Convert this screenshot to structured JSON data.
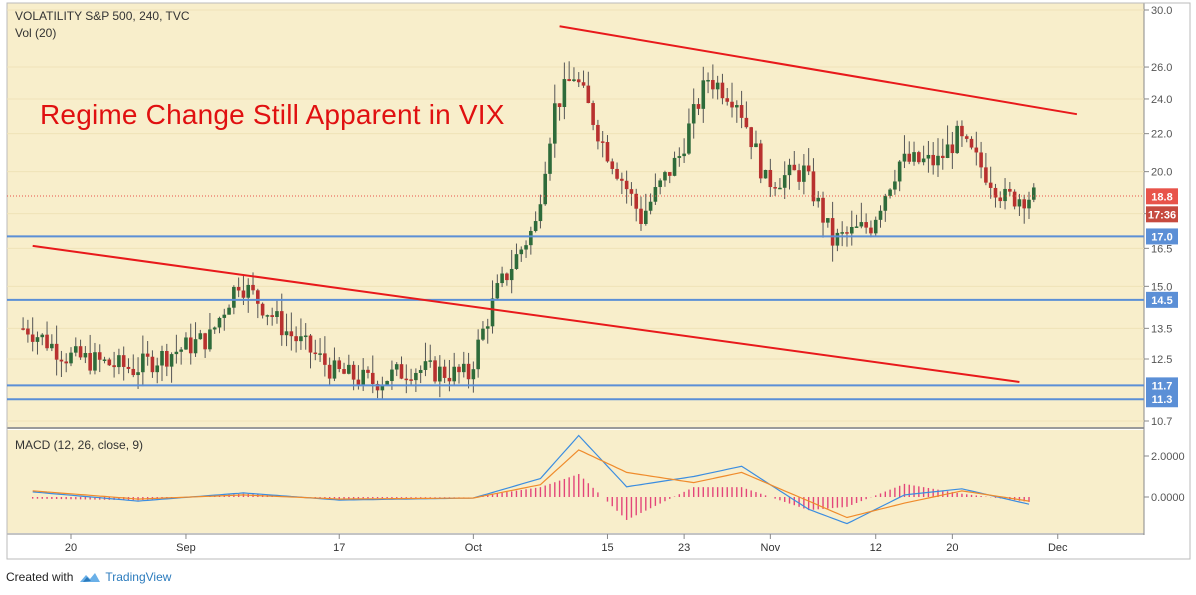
{
  "header": {
    "symbol_line": "VOLATILITY S&P 500, 240, TVC",
    "volume_line": "Vol (20)",
    "macd_label": "MACD (12, 26, close, 9)"
  },
  "annotation": "Regime Change Still Apparent in VIX",
  "footer": {
    "created_with": "Created with",
    "brand": "TradingView"
  },
  "colors": {
    "background": "#f8eecb",
    "support": "#5b8fd6",
    "trendline": "#e8191b",
    "candle_up": "#2e6b3a",
    "candle_down": "#b8312f",
    "macd_line": "#3b8de0",
    "signal_line": "#ef8b2c",
    "histogram": "#e3457a",
    "last_price": "#e8534a",
    "countdown": "#c64a3f"
  },
  "price_axis": {
    "ticks": [
      "30.0",
      "26.0",
      "24.0",
      "22.0",
      "20.0",
      "18.0",
      "16.5",
      "15.0",
      "13.5",
      "12.5",
      "10.7"
    ],
    "scale": "log"
  },
  "macd_axis": {
    "ticks": [
      "2.0000",
      "0.0000"
    ]
  },
  "time_axis": {
    "ticks": [
      "20",
      "Sep",
      "17",
      "Oct",
      "15",
      "23",
      "Nov",
      "12",
      "20",
      "Dec"
    ]
  },
  "price_tags": {
    "last": "18.8",
    "countdown": "17:36",
    "levels": [
      "17.0",
      "14.5",
      "11.7",
      "11.3"
    ]
  },
  "chart_data": {
    "type": "candlestick",
    "title": "VOLATILITY S&P 500, 240, TVC",
    "annotation": "Regime Change Still Apparent in VIX",
    "last_price": 18.8,
    "horizontal_levels": [
      17.0,
      14.5,
      11.7,
      11.3
    ],
    "trendlines": [
      {
        "from": [
          "Aug 16",
          16.6
        ],
        "to": [
          "Nov 27",
          11.8
        ]
      },
      {
        "from": [
          "Oct 10",
          28.8
        ],
        "to": [
          "Dec 3",
          23.1
        ]
      }
    ],
    "approx_closes": {
      "dates": [
        "Aug 16",
        "Aug 20",
        "Aug 27",
        "Sep 4",
        "Sep 7",
        "Sep 12",
        "Sep 17",
        "Sep 21",
        "Sep 25",
        "Oct 1",
        "Oct 4",
        "Oct 8",
        "Oct 10",
        "Oct 12",
        "Oct 15",
        "Oct 19",
        "Oct 23",
        "Oct 26",
        "Oct 29",
        "Nov 1",
        "Nov 5",
        "Nov 8",
        "Nov 12",
        "Nov 15",
        "Nov 19",
        "Nov 21",
        "Nov 26",
        "Nov 28"
      ],
      "values": [
        13.5,
        12.6,
        12.2,
        13.2,
        15.2,
        13.4,
        12.1,
        11.8,
        12.2,
        12.0,
        14.8,
        17.5,
        23.5,
        25.5,
        21.5,
        17.8,
        20.8,
        25.3,
        24.0,
        19.5,
        20.0,
        16.8,
        17.5,
        20.5,
        20.5,
        21.8,
        18.7,
        18.8
      ]
    },
    "macd": {
      "axis_ticks": [
        2.0,
        0.0
      ],
      "dates": [
        "Aug 16",
        "Aug 27",
        "Sep 7",
        "Sep 17",
        "Oct 1",
        "Oct 8",
        "Oct 12",
        "Oct 17",
        "Oct 24",
        "Oct 29",
        "Nov 5",
        "Nov 9",
        "Nov 15",
        "Nov 21",
        "Nov 28"
      ],
      "macd_values": [
        0.25,
        -0.2,
        0.2,
        -0.15,
        -0.05,
        0.9,
        3.0,
        0.5,
        1.0,
        1.5,
        -0.6,
        -1.3,
        0.1,
        0.4,
        -0.35
      ],
      "signal_values": [
        0.3,
        -0.1,
        0.1,
        -0.1,
        -0.05,
        0.6,
        2.3,
        1.2,
        0.7,
        1.2,
        -0.2,
        -1.0,
        -0.3,
        0.3,
        -0.2
      ]
    }
  }
}
